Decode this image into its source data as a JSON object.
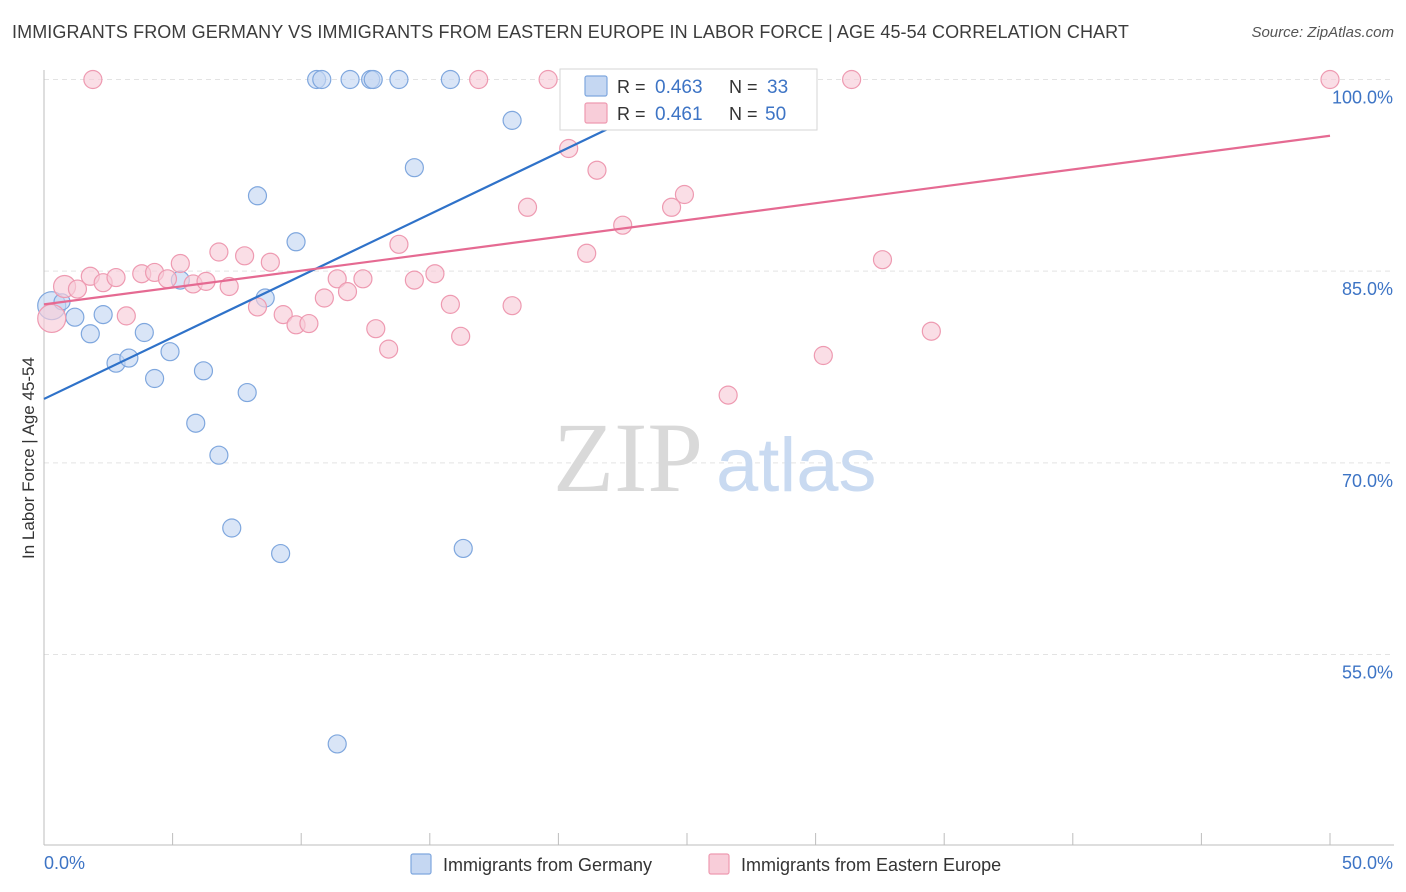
{
  "header": {
    "title": "IMMIGRANTS FROM GERMANY VS IMMIGRANTS FROM EASTERN EUROPE IN LABOR FORCE | AGE 45-54 CORRELATION CHART",
    "source": "Source: ZipAtlas.com"
  },
  "watermark": {
    "zip": "ZIP",
    "atlas": "atlas"
  },
  "stats_box": {
    "rows": [
      {
        "r_label": "R =",
        "r_value": "0.463",
        "n_label": "N =",
        "n_value": "33"
      },
      {
        "r_label": "R =",
        "r_value": "0.461",
        "n_label": "N =",
        "n_value": "50"
      }
    ]
  },
  "colors": {
    "germany_fill": "#c5d7f2",
    "germany_stroke": "#7fa7de",
    "germany_line": "#2f72c9",
    "eastern_fill": "#f8cdd9",
    "eastern_stroke": "#ee9ab1",
    "eastern_line": "#e56a92",
    "tick_label": "#3d74c5",
    "grid": "#e3e3e3"
  },
  "chart_data": {
    "type": "scatter",
    "xlabel": "",
    "ylabel": "In Labor Force | Age 45-54",
    "xlim": [
      0,
      50
    ],
    "ylim": [
      41,
      100.8
    ],
    "x_tick_labels": [
      {
        "value": 0,
        "label": "0.0%"
      },
      {
        "value": 50,
        "label": "50.0%"
      }
    ],
    "y_tick_labels": [
      {
        "value": 55,
        "label": "55.0%"
      },
      {
        "value": 70,
        "label": "70.0%"
      },
      {
        "value": 85,
        "label": "85.0%"
      },
      {
        "value": 100,
        "label": "100.0%"
      }
    ],
    "x_minor_ticks": [
      0,
      5,
      10,
      15,
      20,
      25,
      30,
      35,
      40,
      45,
      50
    ],
    "grid": true,
    "legend_position": "bottom-center",
    "series": [
      {
        "name": "Immigrants from Germany",
        "r": 0.463,
        "n": 33,
        "trend": {
          "x0": 0,
          "y0": 75.0,
          "x1": 25.0,
          "y1": 99.1
        },
        "points": [
          [
            0.3,
            82.3,
            14
          ],
          [
            0.7,
            82.6,
            8
          ],
          [
            1.2,
            81.4,
            9
          ],
          [
            1.8,
            80.1,
            9
          ],
          [
            2.3,
            81.6,
            9
          ],
          [
            2.8,
            77.8,
            9
          ],
          [
            3.3,
            78.2,
            9
          ],
          [
            3.9,
            80.2,
            9
          ],
          [
            4.3,
            76.6,
            9
          ],
          [
            4.9,
            78.7,
            9
          ],
          [
            5.3,
            84.3,
            9
          ],
          [
            5.9,
            73.1,
            9
          ],
          [
            6.2,
            77.2,
            9
          ],
          [
            6.8,
            70.6,
            9
          ],
          [
            7.3,
            64.9,
            9
          ],
          [
            7.9,
            75.5,
            9
          ],
          [
            8.3,
            90.9,
            9
          ],
          [
            8.6,
            82.9,
            9
          ],
          [
            9.2,
            62.9,
            9
          ],
          [
            9.8,
            87.3,
            9
          ],
          [
            10.6,
            100.0,
            9
          ],
          [
            10.8,
            100.0,
            9
          ],
          [
            11.4,
            48.0,
            9
          ],
          [
            11.9,
            100.0,
            9
          ],
          [
            12.7,
            100.0,
            9
          ],
          [
            12.8,
            100.0,
            9
          ],
          [
            13.8,
            100.0,
            9
          ],
          [
            14.4,
            93.1,
            9
          ],
          [
            15.8,
            100.0,
            9
          ],
          [
            16.3,
            63.3,
            9
          ],
          [
            18.2,
            96.8,
            9
          ],
          [
            21.8,
            100.0,
            9
          ],
          [
            23.7,
            100.0,
            9
          ]
        ]
      },
      {
        "name": "Immigrants from Eastern Europe",
        "r": 0.461,
        "n": 50,
        "trend": {
          "x0": 0,
          "y0": 82.4,
          "x1": 50,
          "y1": 95.6
        },
        "points": [
          [
            0.3,
            81.3,
            14
          ],
          [
            0.8,
            83.8,
            11
          ],
          [
            1.3,
            83.6,
            9
          ],
          [
            1.8,
            84.6,
            9
          ],
          [
            2.3,
            84.1,
            9
          ],
          [
            2.8,
            84.5,
            9
          ],
          [
            3.2,
            81.5,
            9
          ],
          [
            3.8,
            84.8,
            9
          ],
          [
            4.3,
            84.9,
            9
          ],
          [
            4.8,
            84.4,
            9
          ],
          [
            5.3,
            85.6,
            9
          ],
          [
            5.8,
            84.0,
            9
          ],
          [
            6.3,
            84.2,
            9
          ],
          [
            6.8,
            86.5,
            9
          ],
          [
            7.2,
            83.8,
            9
          ],
          [
            7.8,
            86.2,
            9
          ],
          [
            8.3,
            82.2,
            9
          ],
          [
            8.8,
            85.7,
            9
          ],
          [
            9.3,
            81.6,
            9
          ],
          [
            9.8,
            80.8,
            9
          ],
          [
            10.3,
            80.9,
            9
          ],
          [
            10.9,
            82.9,
            9
          ],
          [
            11.4,
            84.4,
            9
          ],
          [
            11.8,
            83.4,
            9
          ],
          [
            12.4,
            84.4,
            9
          ],
          [
            12.9,
            80.5,
            9
          ],
          [
            13.4,
            78.9,
            9
          ],
          [
            13.8,
            87.1,
            9
          ],
          [
            14.4,
            84.3,
            9
          ],
          [
            15.2,
            84.8,
            9
          ],
          [
            15.8,
            82.4,
            9
          ],
          [
            16.2,
            79.9,
            9
          ],
          [
            16.9,
            100.0,
            9
          ],
          [
            18.2,
            82.3,
            9
          ],
          [
            18.8,
            90.0,
            9
          ],
          [
            19.6,
            100.0,
            9
          ],
          [
            20.4,
            94.6,
            9
          ],
          [
            21.1,
            86.4,
            9
          ],
          [
            21.5,
            92.9,
            9
          ],
          [
            22.5,
            88.6,
            9
          ],
          [
            24.4,
            90.0,
            9
          ],
          [
            24.9,
            91.0,
            9
          ],
          [
            26.6,
            75.3,
            9
          ],
          [
            29.4,
            100.0,
            9
          ],
          [
            30.3,
            78.4,
            9
          ],
          [
            31.4,
            100.0,
            9
          ],
          [
            32.6,
            85.9,
            9
          ],
          [
            34.5,
            80.3,
            9
          ],
          [
            50.0,
            100.0,
            9
          ],
          [
            1.9,
            100.0,
            9
          ]
        ]
      }
    ]
  }
}
